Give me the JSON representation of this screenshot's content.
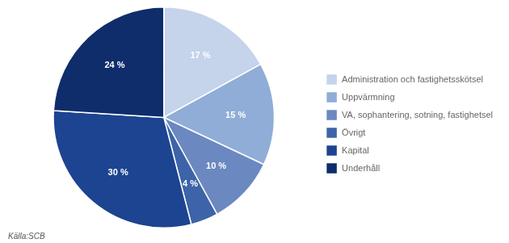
{
  "chart_data": {
    "type": "pie",
    "categories": [
      "Administration och fastighetsskötsel",
      "Uppvärmning",
      "VA, sophantering, sotning, fastighetsel",
      "Övrigt",
      "Kapital",
      "Underhåll"
    ],
    "values": [
      17,
      15,
      10,
      4,
      30,
      24
    ],
    "value_labels": [
      "17 %",
      "15 %",
      "10 %",
      "4 %",
      "30 %",
      "24 %"
    ],
    "colors": [
      "#c5d3eb",
      "#8fadd6",
      "#6b88c0",
      "#3d64a8",
      "#1d4490",
      "#0f2d6b"
    ],
    "data_labels": true,
    "legend": "right",
    "source": "Källa:SCB"
  }
}
